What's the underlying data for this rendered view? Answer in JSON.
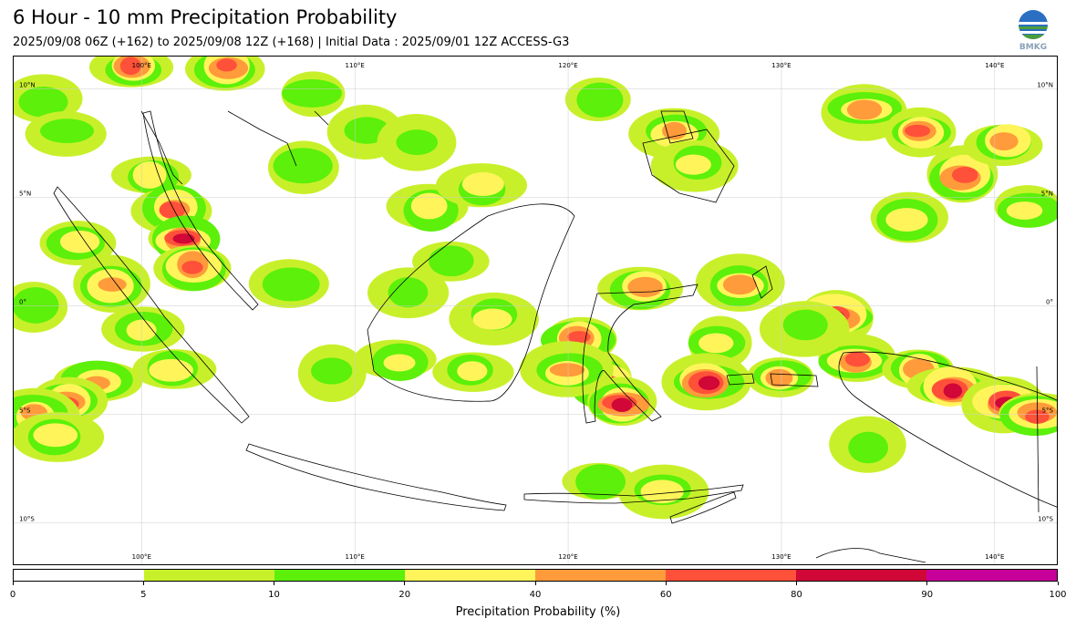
{
  "header": {
    "title": "6 Hour - 10 mm Precipitation Probability",
    "subtitle": "2025/09/08 06Z (+162) to 2025/09/08 12Z (+168) | Initial Data : 2025/09/01 12Z ACCESS-G3",
    "logo_text": "BMKG"
  },
  "map": {
    "lon_range": [
      94,
      143
    ],
    "lat_range": [
      -12,
      11.5
    ],
    "lon_labels": [
      {
        "value": 100,
        "text": "100°E"
      },
      {
        "value": 110,
        "text": "110°E"
      },
      {
        "value": 120,
        "text": "120°E"
      },
      {
        "value": 130,
        "text": "130°E"
      },
      {
        "value": 140,
        "text": "140°E"
      }
    ],
    "lat_labels": [
      {
        "value": 10,
        "text": "10°N"
      },
      {
        "value": 5,
        "text": "5°N"
      },
      {
        "value": 0,
        "text": "0°"
      },
      {
        "value": -5,
        "text": "5°S"
      },
      {
        "value": -10,
        "text": "10°S"
      }
    ],
    "precip_areas": [
      {
        "lon": 95.5,
        "lat": 9.5,
        "level": 2
      },
      {
        "lon": 96.5,
        "lat": 8.0,
        "level": 2
      },
      {
        "lon": 99.5,
        "lat": 11.0,
        "level": 5
      },
      {
        "lon": 104.0,
        "lat": 11.0,
        "level": 5
      },
      {
        "lon": 108.0,
        "lat": 9.8,
        "level": 2
      },
      {
        "lon": 110.5,
        "lat": 8.0,
        "level": 2
      },
      {
        "lon": 107.5,
        "lat": 6.5,
        "level": 2
      },
      {
        "lon": 100.5,
        "lat": 6.0,
        "level": 3
      },
      {
        "lon": 101.5,
        "lat": 4.5,
        "level": 5
      },
      {
        "lon": 102.0,
        "lat": 3.0,
        "level": 6
      },
      {
        "lon": 102.5,
        "lat": 1.8,
        "level": 5
      },
      {
        "lon": 97.0,
        "lat": 3.0,
        "level": 3
      },
      {
        "lon": 98.5,
        "lat": 1.0,
        "level": 4
      },
      {
        "lon": 100.0,
        "lat": -1.0,
        "level": 3
      },
      {
        "lon": 101.5,
        "lat": -3.0,
        "level": 3
      },
      {
        "lon": 95.0,
        "lat": 0.0,
        "level": 2
      },
      {
        "lon": 98.0,
        "lat": -3.5,
        "level": 4
      },
      {
        "lon": 96.5,
        "lat": -4.5,
        "level": 5
      },
      {
        "lon": 95.0,
        "lat": -5.0,
        "level": 4
      },
      {
        "lon": 96.0,
        "lat": -6.0,
        "level": 3
      },
      {
        "lon": 107.0,
        "lat": 1.0,
        "level": 2
      },
      {
        "lon": 113.5,
        "lat": 4.5,
        "level": 3
      },
      {
        "lon": 116.0,
        "lat": 5.5,
        "level": 3
      },
      {
        "lon": 114.5,
        "lat": 2.0,
        "level": 2
      },
      {
        "lon": 112.5,
        "lat": 0.5,
        "level": 2
      },
      {
        "lon": 112.0,
        "lat": -2.5,
        "level": 3
      },
      {
        "lon": 116.5,
        "lat": -0.5,
        "level": 3
      },
      {
        "lon": 115.5,
        "lat": -3.0,
        "level": 3
      },
      {
        "lon": 113.0,
        "lat": 7.5,
        "level": 2
      },
      {
        "lon": 121.5,
        "lat": 9.5,
        "level": 2
      },
      {
        "lon": 125.0,
        "lat": 8.0,
        "level": 4
      },
      {
        "lon": 126.0,
        "lat": 6.5,
        "level": 3
      },
      {
        "lon": 123.5,
        "lat": 0.8,
        "level": 4
      },
      {
        "lon": 120.5,
        "lat": -1.5,
        "level": 5
      },
      {
        "lon": 121.5,
        "lat": -3.5,
        "level": 6
      },
      {
        "lon": 122.5,
        "lat": -4.5,
        "level": 6
      },
      {
        "lon": 120.0,
        "lat": -3.0,
        "level": 4
      },
      {
        "lon": 128.0,
        "lat": 1.0,
        "level": 4
      },
      {
        "lon": 127.0,
        "lat": -1.8,
        "level": 3
      },
      {
        "lon": 130.0,
        "lat": -3.3,
        "level": 4
      },
      {
        "lon": 126.5,
        "lat": -3.5,
        "level": 6
      },
      {
        "lon": 132.5,
        "lat": -0.5,
        "level": 6
      },
      {
        "lon": 133.5,
        "lat": -2.5,
        "level": 5
      },
      {
        "lon": 136.5,
        "lat": -3.0,
        "level": 4
      },
      {
        "lon": 138.0,
        "lat": -3.8,
        "level": 6
      },
      {
        "lon": 140.5,
        "lat": -4.5,
        "level": 6
      },
      {
        "lon": 142.0,
        "lat": -5.0,
        "level": 5
      },
      {
        "lon": 134.0,
        "lat": 9.0,
        "level": 4
      },
      {
        "lon": 136.5,
        "lat": 8.0,
        "level": 5
      },
      {
        "lon": 138.5,
        "lat": 6.0,
        "level": 5
      },
      {
        "lon": 140.5,
        "lat": 7.5,
        "level": 4
      },
      {
        "lon": 136.0,
        "lat": 4.0,
        "level": 3
      },
      {
        "lon": 141.5,
        "lat": 4.5,
        "level": 3
      },
      {
        "lon": 124.5,
        "lat": -8.5,
        "level": 3
      },
      {
        "lon": 121.5,
        "lat": -8.0,
        "level": 2
      },
      {
        "lon": 131.0,
        "lat": -1.0,
        "level": 2
      },
      {
        "lon": 134.0,
        "lat": -6.5,
        "level": 2
      },
      {
        "lon": 109.0,
        "lat": -3.0,
        "level": 2
      }
    ]
  },
  "colorbar": {
    "label": "Precipitation Probability (%)",
    "ticks": [
      "0",
      "5",
      "10",
      "20",
      "40",
      "60",
      "80",
      "90",
      "100"
    ],
    "colors": [
      "#ffffff",
      "#c8f02a",
      "#5cf00a",
      "#fff55a",
      "#ff9b3b",
      "#ff503a",
      "#d00737",
      "#c8009a"
    ]
  }
}
